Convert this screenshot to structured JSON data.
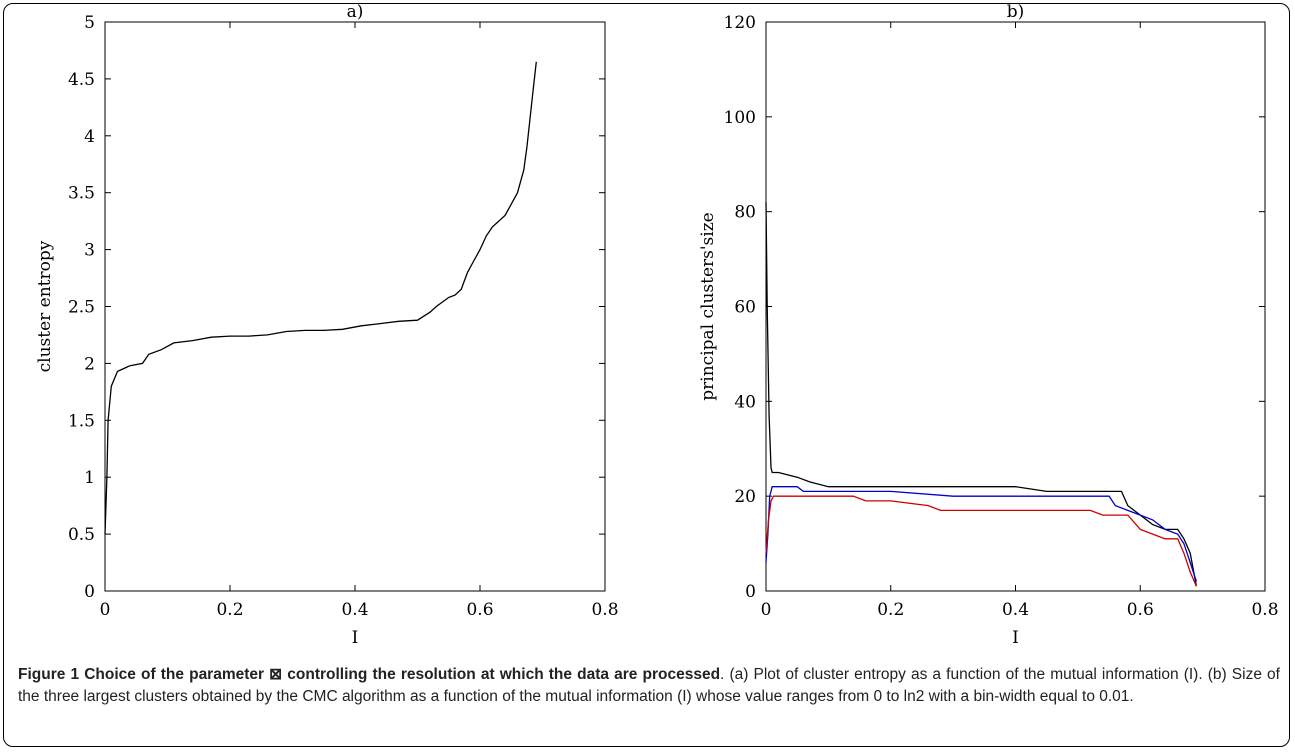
{
  "caption": {
    "title": "Figure 1 Choice of the parameter ⊠ controlling the resolution at which the data are processed",
    "text": ". (a) Plot of cluster entropy as a function of the mutual information (I). (b) Size of the three largest clusters obtained by the CMC algorithm as a function of the mutual information (I) whose value ranges from 0 to ln2 with a bin-width equal to 0.01."
  },
  "colors": {
    "axis": "#000000",
    "series_black": "#000000",
    "series_blue": "#0000cc",
    "series_red": "#cc0000"
  },
  "chart_data": [
    {
      "type": "line",
      "title": "a)",
      "xlabel": "I",
      "ylabel": "cluster entropy",
      "xlim": [
        0,
        0.8
      ],
      "ylim": [
        0,
        5
      ],
      "xticks": [
        "0",
        "0.2",
        "0.4",
        "0.6",
        "0.8"
      ],
      "yticks": [
        "0",
        "0.5",
        "1",
        "1.5",
        "2",
        "2.5",
        "3",
        "3.5",
        "4",
        "4.5",
        "5"
      ],
      "series": [
        {
          "color": "#000000",
          "x": [
            0,
            0.003,
            0.005,
            0.01,
            0.02,
            0.04,
            0.06,
            0.07,
            0.09,
            0.11,
            0.14,
            0.17,
            0.2,
            0.23,
            0.26,
            0.29,
            0.32,
            0.35,
            0.38,
            0.41,
            0.44,
            0.47,
            0.5,
            0.52,
            0.53,
            0.55,
            0.56,
            0.57,
            0.58,
            0.59,
            0.6,
            0.61,
            0.62,
            0.63,
            0.64,
            0.65,
            0.66,
            0.67,
            0.675,
            0.68,
            0.685,
            0.69
          ],
          "y": [
            0.5,
            1.0,
            1.5,
            1.8,
            1.93,
            1.98,
            2.0,
            2.08,
            2.12,
            2.18,
            2.2,
            2.23,
            2.24,
            2.24,
            2.25,
            2.28,
            2.29,
            2.29,
            2.3,
            2.33,
            2.35,
            2.37,
            2.38,
            2.45,
            2.5,
            2.58,
            2.6,
            2.65,
            2.8,
            2.9,
            3.0,
            3.12,
            3.2,
            3.25,
            3.3,
            3.4,
            3.5,
            3.7,
            3.9,
            4.15,
            4.4,
            4.65
          ]
        }
      ]
    },
    {
      "type": "line",
      "title": "b)",
      "xlabel": "I",
      "ylabel": "principal clusters'size",
      "xlim": [
        0,
        0.8
      ],
      "ylim": [
        0,
        120
      ],
      "xticks": [
        "0",
        "0.2",
        "0.4",
        "0.6",
        "0.8"
      ],
      "yticks": [
        "0",
        "20",
        "40",
        "60",
        "80",
        "100",
        "120"
      ],
      "series": [
        {
          "color": "#000000",
          "x": [
            0,
            0.002,
            0.005,
            0.008,
            0.01,
            0.02,
            0.05,
            0.07,
            0.1,
            0.2,
            0.3,
            0.4,
            0.45,
            0.5,
            0.55,
            0.57,
            0.58,
            0.6,
            0.62,
            0.64,
            0.66,
            0.67,
            0.68,
            0.69
          ],
          "y": [
            82,
            60,
            37,
            26,
            25,
            25,
            24,
            23,
            22,
            22,
            22,
            22,
            21,
            21,
            21,
            21,
            18,
            16,
            14,
            13,
            13,
            11,
            8,
            1
          ]
        },
        {
          "color": "#0000cc",
          "x": [
            0,
            0.003,
            0.006,
            0.01,
            0.02,
            0.05,
            0.06,
            0.1,
            0.2,
            0.3,
            0.4,
            0.5,
            0.55,
            0.56,
            0.58,
            0.6,
            0.62,
            0.64,
            0.66,
            0.67,
            0.68,
            0.69
          ],
          "y": [
            6,
            12,
            20,
            22,
            22,
            22,
            21,
            21,
            21,
            20,
            20,
            20,
            20,
            18,
            17,
            16,
            15,
            13,
            12,
            10,
            6,
            2
          ]
        },
        {
          "color": "#cc0000",
          "x": [
            0,
            0.004,
            0.008,
            0.012,
            0.02,
            0.06,
            0.1,
            0.14,
            0.16,
            0.2,
            0.26,
            0.28,
            0.35,
            0.45,
            0.52,
            0.54,
            0.58,
            0.6,
            0.62,
            0.64,
            0.66,
            0.67,
            0.68,
            0.69
          ],
          "y": [
            8,
            15,
            19,
            20,
            20,
            20,
            20,
            20,
            19,
            19,
            18,
            17,
            17,
            17,
            17,
            16,
            16,
            13,
            12,
            11,
            11,
            8,
            4,
            1
          ]
        }
      ]
    }
  ]
}
